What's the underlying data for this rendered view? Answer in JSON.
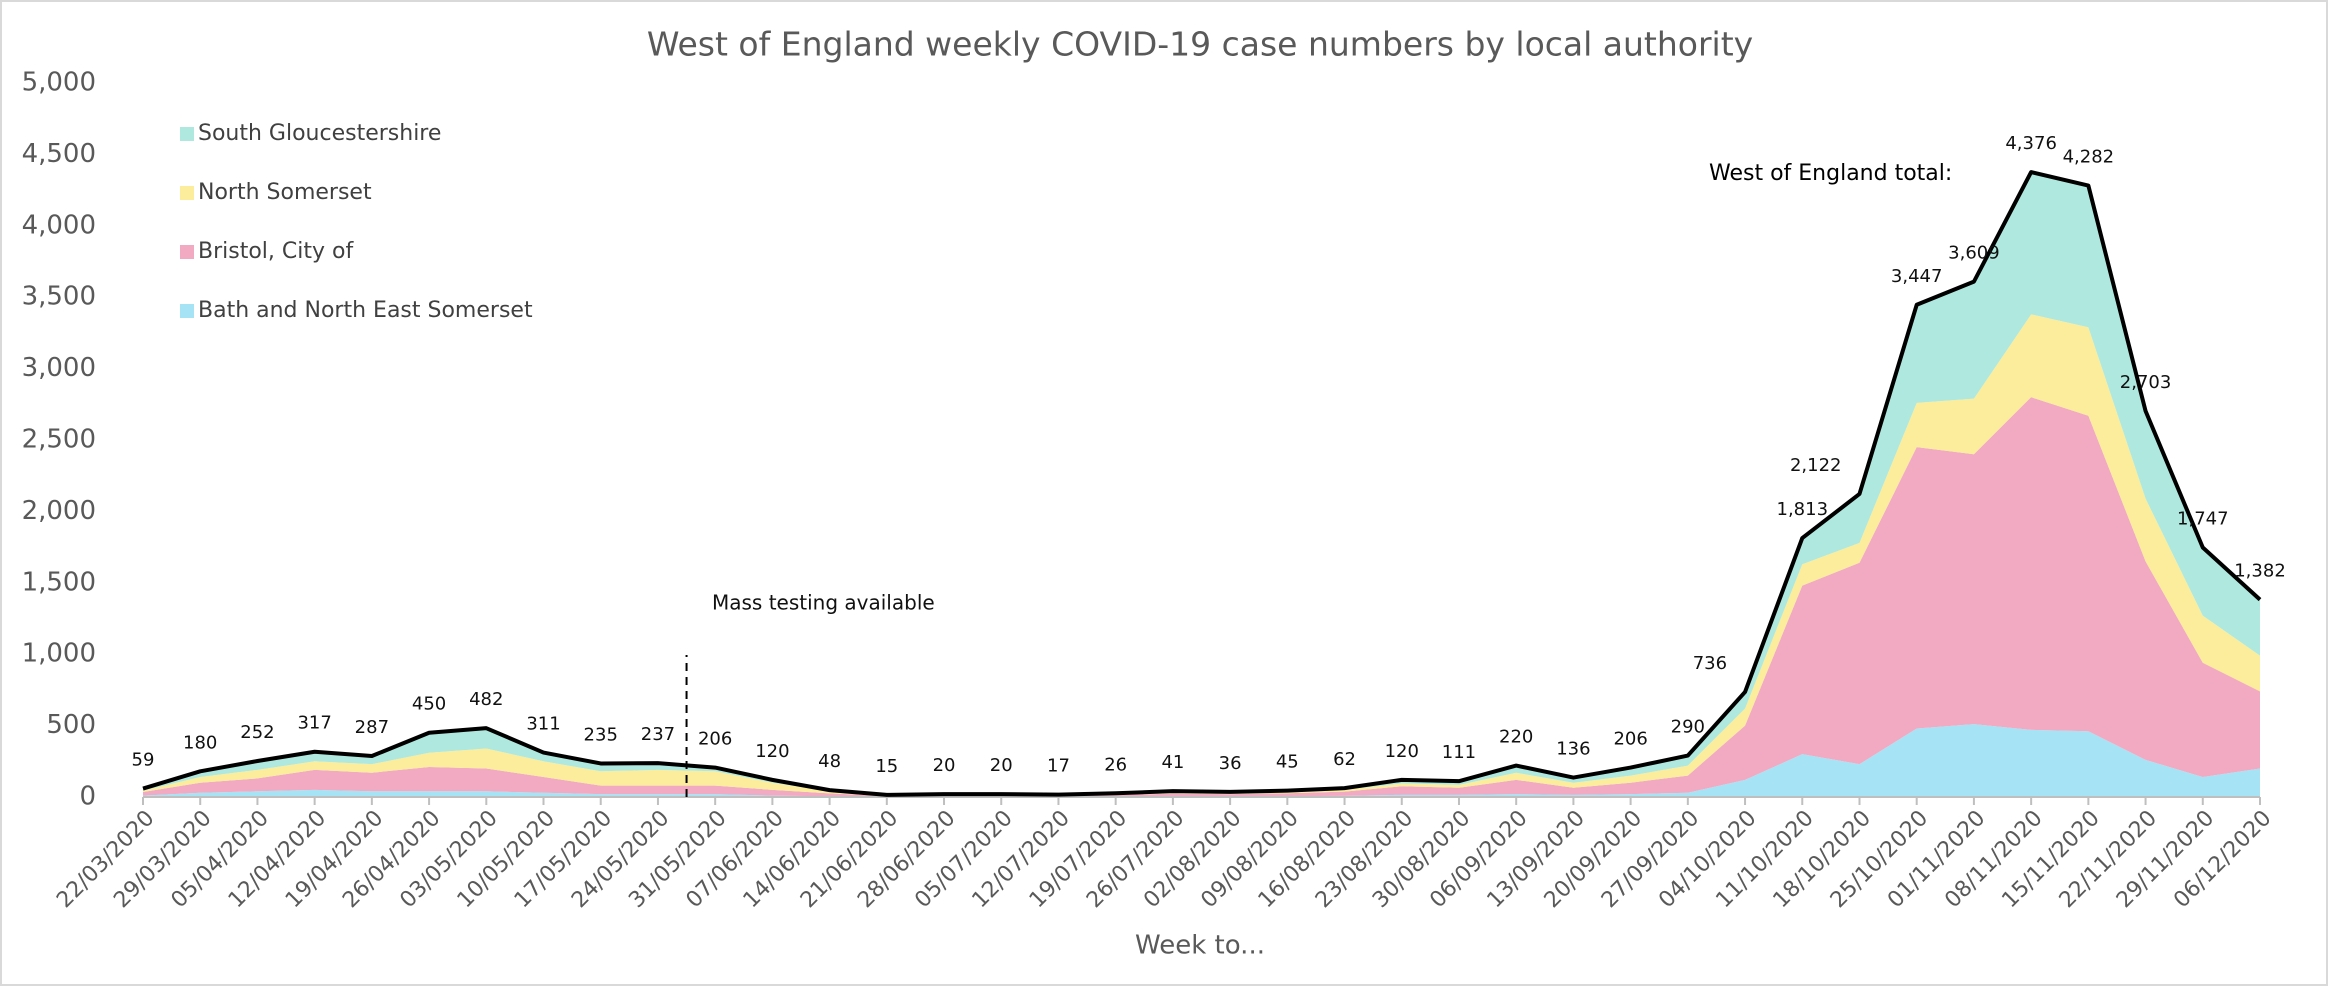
{
  "chart_data": {
    "type": "stacked-area",
    "title": "West of England weekly COVID-19 case numbers by local authority",
    "x_label": "Week to...",
    "annotation": "Mass testing available",
    "categories": [
      "22/03/2020",
      "29/03/2020",
      "05/04/2020",
      "12/04/2020",
      "19/04/2020",
      "26/04/2020",
      "03/05/2020",
      "10/05/2020",
      "17/05/2020",
      "24/05/2020",
      "31/05/2020",
      "07/06/2020",
      "14/06/2020",
      "21/06/2020",
      "28/06/2020",
      "05/07/2020",
      "12/07/2020",
      "19/07/2020",
      "26/07/2020",
      "02/08/2020",
      "09/08/2020",
      "16/08/2020",
      "23/08/2020",
      "30/08/2020",
      "06/09/2020",
      "13/09/2020",
      "20/09/2020",
      "27/09/2020",
      "04/10/2020",
      "11/10/2020",
      "18/10/2020",
      "25/10/2020",
      "01/11/2020",
      "08/11/2020",
      "15/11/2020",
      "22/11/2020",
      "29/11/2020",
      "06/12/2020"
    ],
    "series": [
      {
        "name": "Bath and North East Somerset",
        "color": "#a6e3f5",
        "values": [
          10,
          30,
          40,
          50,
          40,
          40,
          40,
          30,
          20,
          20,
          20,
          10,
          5,
          2,
          3,
          3,
          2,
          4,
          6,
          5,
          6,
          8,
          15,
          15,
          20,
          15,
          20,
          30,
          120,
          300,
          230,
          480,
          510,
          470,
          460,
          260,
          140,
          200
        ]
      },
      {
        "name": "Bristol, City of",
        "color": "#f2a9c2",
        "values": [
          25,
          70,
          90,
          140,
          130,
          170,
          160,
          110,
          60,
          60,
          60,
          40,
          20,
          6,
          8,
          8,
          7,
          10,
          18,
          15,
          20,
          30,
          60,
          50,
          100,
          50,
          80,
          120,
          380,
          1180,
          1410,
          1970,
          1890,
          2330,
          2210,
          1390,
          800,
          540
        ]
      },
      {
        "name": "North Somerset",
        "color": "#fbed9b",
        "values": [
          10,
          40,
          60,
          60,
          60,
          100,
          140,
          110,
          100,
          110,
          100,
          50,
          15,
          4,
          5,
          5,
          4,
          6,
          8,
          8,
          9,
          12,
          20,
          20,
          50,
          35,
          50,
          70,
          120,
          150,
          140,
          310,
          390,
          580,
          620,
          440,
          330,
          250
        ]
      },
      {
        "name": "South Gloucestershire",
        "color": "#aee8de",
        "values": [
          14,
          40,
          62,
          67,
          57,
          140,
          142,
          61,
          55,
          47,
          26,
          20,
          8,
          3,
          4,
          4,
          4,
          6,
          9,
          8,
          10,
          12,
          25,
          26,
          50,
          36,
          56,
          70,
          116,
          183,
          342,
          687,
          819,
          996,
          992,
          613,
          477,
          392
        ]
      }
    ],
    "total": {
      "name": "West of England total:",
      "color": "#000000",
      "values": [
        59,
        180,
        252,
        317,
        287,
        450,
        482,
        311,
        235,
        237,
        206,
        120,
        48,
        15,
        20,
        20,
        17,
        26,
        41,
        36,
        45,
        62,
        120,
        111,
        220,
        136,
        206,
        290,
        736,
        1813,
        2122,
        3447,
        3609,
        4376,
        4282,
        2703,
        1747,
        1382
      ],
      "value_labels": [
        "59",
        "180",
        "252",
        "317",
        "287",
        "450",
        "482",
        "311",
        "235",
        "237",
        "206",
        "120",
        "48",
        "15",
        "20",
        "20",
        "17",
        "26",
        "41",
        "36",
        "45",
        "62",
        "120",
        "111",
        "220",
        "136",
        "206",
        "290",
        "736",
        "1,813",
        "2,122",
        "3,447",
        "3,609",
        "4,376",
        "4,282",
        "2,703",
        "1,747",
        "1,382"
      ]
    },
    "ylim": [
      0,
      5000
    ],
    "yticks": [
      0,
      500,
      {
        "value": 1000,
        "label": "1,000"
      },
      {
        "value": 1500,
        "label": "1,500"
      },
      {
        "value": 2000,
        "label": "2,000"
      },
      {
        "value": 2500,
        "label": "2,500"
      },
      {
        "value": 3000,
        "label": "3,000"
      },
      {
        "value": 3500,
        "label": "3,500"
      },
      {
        "value": 4000,
        "label": "4,000"
      },
      {
        "value": 4500,
        "label": "4,500"
      },
      {
        "value": 5000,
        "label": "5,000"
      }
    ],
    "legend": "top-left"
  }
}
